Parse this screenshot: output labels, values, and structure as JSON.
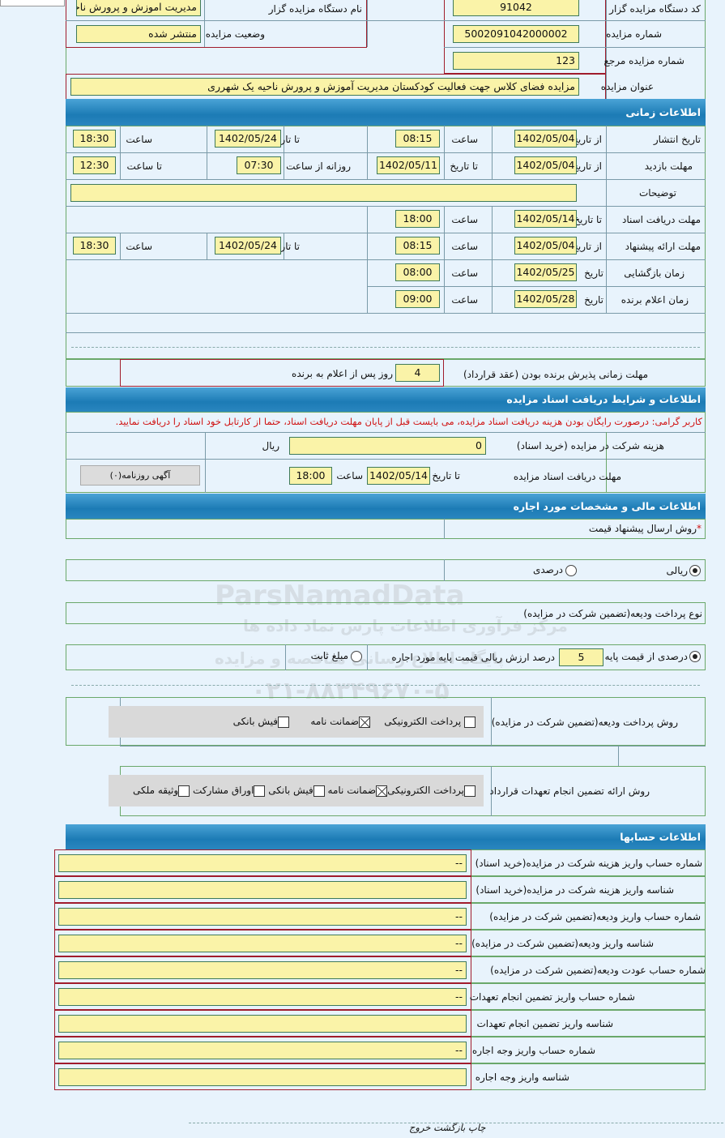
{
  "general": {
    "org_code_label": "کد دستگاه مزایده گزار",
    "org_code": "91042",
    "org_name_label": "نام دستگاه مزایده گزار",
    "org_name": "مدیریت اموزش و پرورش ناحیه",
    "auction_no_label": "شماره مزایده",
    "auction_no": "5002091042000002",
    "status_label": "وضعیت مزایده",
    "status": "منتشر شده",
    "ref_no_label": "شماره مزایده مرجع",
    "ref_no": "123",
    "title_label": "عنوان مزایده",
    "title": "مزایده فضای کلاس جهت فعالیت کودکستان مدیریت آموزش و پرورش ناحیه یک شهرری"
  },
  "time": {
    "header": "اطلاعات زمانی",
    "publish": {
      "label": "تاریخ انتشار",
      "from_label": "از تاریخ",
      "from": "1402/05/04",
      "time1_label": "ساعت",
      "time1": "08:15",
      "to_label": "تا تاریخ",
      "to": "1402/05/24",
      "time2_label": "ساعت",
      "time2": "18:30"
    },
    "visit": {
      "label": "مهلت بازدید",
      "from_label": "از تاریخ",
      "from": "1402/05/04",
      "to_label": "تا تاریخ",
      "to": "1402/05/11",
      "daily_label": "روزانه از ساعت",
      "daily": "07:30",
      "until_label": "تا ساعت",
      "until": "12:30"
    },
    "notes_label": "توضیحات",
    "notes": "",
    "docs": {
      "label": "مهلت دریافت اسناد",
      "to_label": "تا تاریخ",
      "to": "1402/05/14",
      "time_label": "ساعت",
      "time": "18:00"
    },
    "offer": {
      "label": "مهلت ارائه پیشنهاد",
      "from_label": "از تاریخ",
      "from": "1402/05/04",
      "time1_label": "ساعت",
      "time1": "08:15",
      "to_label": "تا تاریخ",
      "to": "1402/05/24",
      "time2_label": "ساعت",
      "time2": "18:30"
    },
    "opening": {
      "label": "زمان بازگشایی",
      "date_label": "تاریخ",
      "date": "1402/05/25",
      "time_label": "ساعت",
      "time": "08:00"
    },
    "winner": {
      "label": "زمان اعلام برنده",
      "date_label": "تاریخ",
      "date": "1402/05/28",
      "time_label": "ساعت",
      "time": "09:00"
    },
    "accept_label": "مهلت زمانی پذیرش برنده بودن (عقد قرارداد)",
    "accept_days": "4",
    "accept_suffix": "روز پس از اعلام به برنده"
  },
  "docs": {
    "header": "اطلاعات و شرایط دریافت اسناد مزایده",
    "notice": "کاربر گرامی: درصورت رایگان بودن هزینه دریافت اسناد مزایده، می بایست قبل از پایان مهلت دریافت اسناد، حتما از کارتابل خود اسناد را دریافت نمایید.",
    "fee_label": "هزینه شرکت در مزایده (خرید اسناد)",
    "fee": "0",
    "currency": "ریال",
    "deadline_label": "مهلت دریافت اسناد مزایده",
    "to_label": "تا تاریخ",
    "to": "1402/05/14",
    "time_label": "ساعت",
    "time": "18:00",
    "newspaper_button": "آگهی روزنامه(۰)"
  },
  "finance": {
    "header": "اطلاعات مالی و مشخصات مورد اجاره",
    "method_label": "روش ارسال پیشنهاد قیمت",
    "required_mark": "*",
    "method_options": [
      {
        "label": "ریالی",
        "checked": true
      },
      {
        "label": "درصدی",
        "checked": false
      }
    ],
    "deposit_type_label": "نوع پرداخت ودیعه(تضمین شرکت در مزایده)",
    "deposit_percent_label": "درصدی از قیمت پایه",
    "deposit_percent": "5",
    "deposit_percent_suffix": "درصد ارزش ریالی قیمت پایه مورد اجاره",
    "deposit_percent_checked": true,
    "deposit_fixed_label": "مبلغ ثابت",
    "deposit_fixed_checked": false,
    "deposit_pay_label": "روش پرداخت ودیعه(تضمین شرکت در مزایده)",
    "deposit_pay_options": [
      {
        "label": "پرداخت الکترونیکی",
        "checked": false
      },
      {
        "label": "ضمانت نامه",
        "checked": true
      },
      {
        "label": "فیش بانکی",
        "checked": false
      }
    ],
    "guarantee_label": "روش ارائه تضمین انجام تعهدات قرارداد",
    "guarantee_options": [
      {
        "label": "پرداخت الکترونیکی",
        "checked": false
      },
      {
        "label": "ضمانت نامه",
        "checked": true
      },
      {
        "label": "فیش بانکی",
        "checked": false
      },
      {
        "label": "اوراق مشارکت",
        "checked": false
      },
      {
        "label": "وثیقه ملکی",
        "checked": false
      }
    ]
  },
  "accounts": {
    "header": "اطلاعات حسابها",
    "rows": [
      {
        "label": "شماره حساب واریز هزینه شرکت در مزایده(خرید اسناد)",
        "value": "--"
      },
      {
        "label": "شناسه واریز هزینه شرکت در مزایده(خرید اسناد)",
        "value": ""
      },
      {
        "label": "شماره حساب واریز ودیعه(تضمین شرکت در مزایده)",
        "value": "--"
      },
      {
        "label": "شناسه واریز ودیعه(تضمین شرکت در مزایده)",
        "value": "--"
      },
      {
        "label": "شماره حساب عودت ودیعه(تضمین شرکت در مزایده)",
        "value": "--"
      },
      {
        "label": "شماره حساب واریز تضمین انجام تعهدات",
        "value": "--"
      },
      {
        "label": "شناسه واریز تضمین انجام تعهدات",
        "value": ""
      },
      {
        "label": "شماره حساب واریز وجه اجاره",
        "value": "--"
      },
      {
        "label": "شناسه واریز وجه اجاره",
        "value": ""
      }
    ]
  },
  "footer": {
    "print": "چاپ",
    "back": "بازگشت",
    "exit": "خروج"
  },
  "watermark": {
    "brand": "ParsNamadData",
    "line1": "مرکز فرآوری اطلاعات پارس نماد داده ها",
    "line2": "پایگاه اطلاع رسانی مناقصه و مزایده",
    "phone": "۰۲۱-۸۸۳۴۹۶۷۰-۵"
  }
}
